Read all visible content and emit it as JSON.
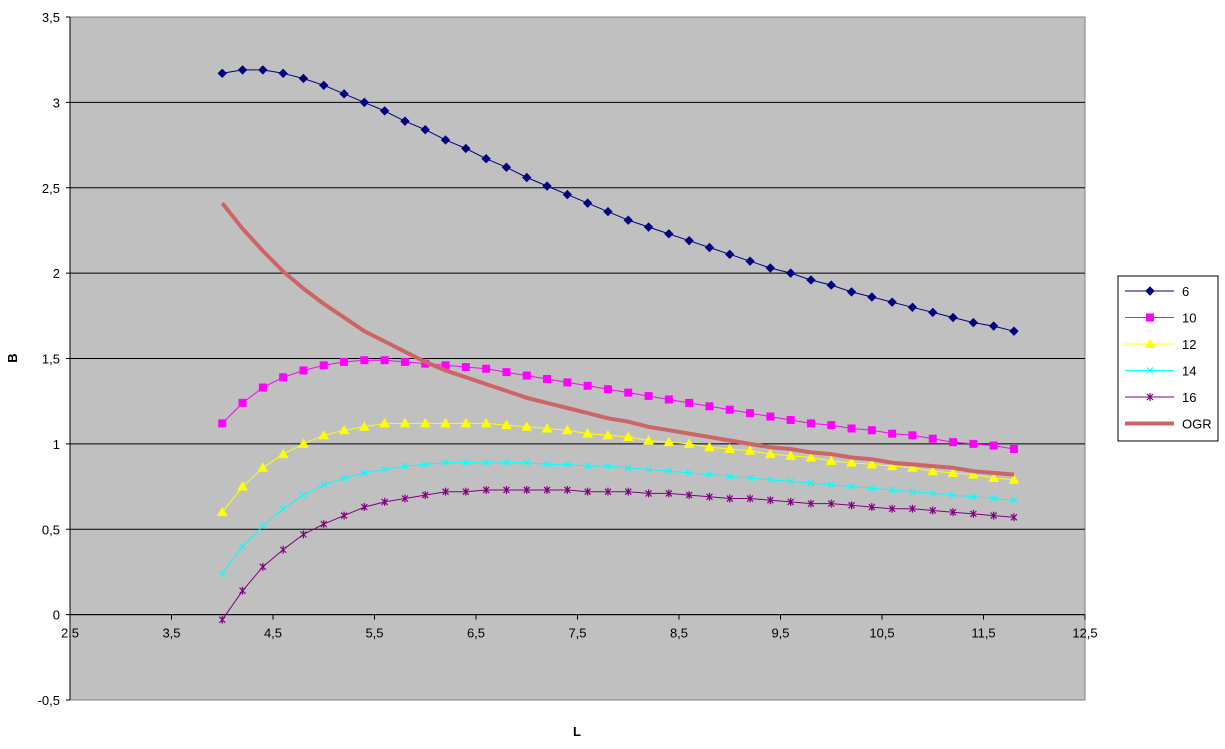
{
  "chart_data": {
    "type": "line",
    "title": "",
    "xlabel": "L",
    "ylabel": "B",
    "xlim": [
      2.5,
      12.5
    ],
    "ylim": [
      -0.5,
      3.5
    ],
    "x_ticks": [
      "2,5",
      "3,5",
      "4,5",
      "5,5",
      "6,5",
      "7,5",
      "8,5",
      "9,5",
      "10,5",
      "11,5",
      "12,5"
    ],
    "y_ticks": [
      "-0,5",
      "0",
      "0,5",
      "1",
      "1,5",
      "2",
      "2,5",
      "3",
      "3,5"
    ],
    "grid": "horizontal major gridlines",
    "plot_background": "#c0c0c0",
    "legend_placement": "right",
    "x": [
      4.0,
      4.2,
      4.4,
      4.6,
      4.8,
      5.0,
      5.2,
      5.4,
      5.6,
      5.8,
      6.0,
      6.2,
      6.4,
      6.6,
      6.8,
      7.0,
      7.2,
      7.4,
      7.6,
      7.8,
      8.0,
      8.2,
      8.4,
      8.6,
      8.8,
      9.0,
      9.2,
      9.4,
      9.6,
      9.8,
      10.0,
      10.2,
      10.4,
      10.6,
      10.8,
      11.0,
      11.2,
      11.4,
      11.6,
      11.8
    ],
    "series": [
      {
        "name": "6",
        "color": "#000080",
        "marker": "diamond",
        "values": [
          3.17,
          3.19,
          3.19,
          3.17,
          3.14,
          3.1,
          3.05,
          3.0,
          2.95,
          2.89,
          2.84,
          2.78,
          2.73,
          2.67,
          2.62,
          2.56,
          2.51,
          2.46,
          2.41,
          2.36,
          2.31,
          2.27,
          2.23,
          2.19,
          2.15,
          2.11,
          2.07,
          2.03,
          2.0,
          1.96,
          1.93,
          1.89,
          1.86,
          1.83,
          1.8,
          1.77,
          1.74,
          1.71,
          1.69,
          1.66
        ]
      },
      {
        "name": "10",
        "color": "#ff00ff",
        "marker": "square",
        "values": [
          1.12,
          1.24,
          1.33,
          1.39,
          1.43,
          1.46,
          1.48,
          1.49,
          1.49,
          1.48,
          1.47,
          1.46,
          1.45,
          1.44,
          1.42,
          1.4,
          1.38,
          1.36,
          1.34,
          1.32,
          1.3,
          1.28,
          1.26,
          1.24,
          1.22,
          1.2,
          1.18,
          1.16,
          1.14,
          1.12,
          1.11,
          1.09,
          1.08,
          1.06,
          1.05,
          1.03,
          1.01,
          1.0,
          0.99,
          0.97
        ]
      },
      {
        "name": "12",
        "color": "#ffff00",
        "marker": "triangle",
        "values": [
          0.6,
          0.75,
          0.86,
          0.94,
          1.0,
          1.05,
          1.08,
          1.1,
          1.12,
          1.12,
          1.12,
          1.12,
          1.12,
          1.12,
          1.11,
          1.1,
          1.09,
          1.08,
          1.06,
          1.05,
          1.04,
          1.02,
          1.01,
          1.0,
          0.98,
          0.97,
          0.96,
          0.94,
          0.93,
          0.92,
          0.9,
          0.89,
          0.88,
          0.87,
          0.86,
          0.84,
          0.83,
          0.82,
          0.8,
          0.79
        ]
      },
      {
        "name": "14",
        "color": "#00ffff",
        "marker": "x",
        "values": [
          0.24,
          0.4,
          0.52,
          0.62,
          0.7,
          0.76,
          0.8,
          0.83,
          0.85,
          0.87,
          0.88,
          0.89,
          0.89,
          0.89,
          0.89,
          0.89,
          0.88,
          0.88,
          0.87,
          0.87,
          0.86,
          0.85,
          0.84,
          0.83,
          0.82,
          0.81,
          0.8,
          0.79,
          0.78,
          0.77,
          0.76,
          0.75,
          0.74,
          0.73,
          0.72,
          0.71,
          0.7,
          0.69,
          0.68,
          0.67
        ]
      },
      {
        "name": "16",
        "color": "#800080",
        "marker": "star",
        "values": [
          -0.03,
          0.14,
          0.28,
          0.38,
          0.47,
          0.53,
          0.58,
          0.63,
          0.66,
          0.68,
          0.7,
          0.72,
          0.72,
          0.73,
          0.73,
          0.73,
          0.73,
          0.73,
          0.72,
          0.72,
          0.72,
          0.71,
          0.71,
          0.7,
          0.69,
          0.68,
          0.68,
          0.67,
          0.66,
          0.65,
          0.65,
          0.64,
          0.63,
          0.62,
          0.62,
          0.61,
          0.6,
          0.59,
          0.58,
          0.57
        ]
      },
      {
        "name": "OGR",
        "color": "#cc6666",
        "marker": "none",
        "values": [
          2.41,
          2.26,
          2.13,
          2.01,
          1.91,
          1.82,
          1.74,
          1.66,
          1.6,
          1.54,
          1.48,
          1.43,
          1.39,
          1.35,
          1.31,
          1.27,
          1.24,
          1.21,
          1.18,
          1.15,
          1.13,
          1.1,
          1.08,
          1.06,
          1.04,
          1.02,
          1.0,
          0.98,
          0.97,
          0.95,
          0.94,
          0.92,
          0.91,
          0.89,
          0.88,
          0.87,
          0.86,
          0.84,
          0.83,
          0.82
        ]
      }
    ]
  }
}
